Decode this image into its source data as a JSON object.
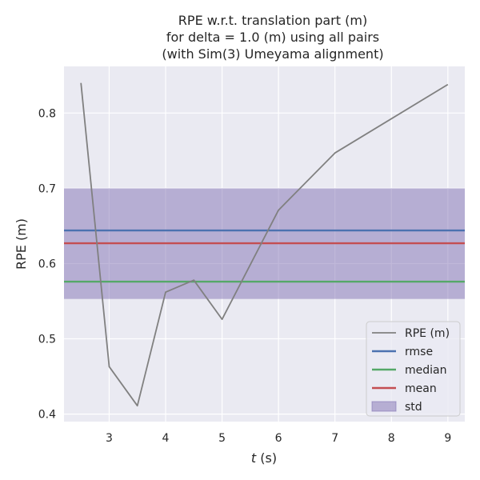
{
  "chart_data": {
    "type": "line",
    "title": [
      "RPE w.r.t. translation part (m)",
      "for delta = 1.0 (m) using all pairs",
      "(with Sim(3) Umeyama alignment)"
    ],
    "xlabel_italic": "t",
    "xlabel_rest": " (s)",
    "ylabel": "RPE (m)",
    "xlim": [
      2.2,
      9.3
    ],
    "ylim": [
      0.39,
      0.862
    ],
    "x_ticks": [
      3,
      4,
      5,
      6,
      7,
      8,
      9
    ],
    "y_ticks": [
      0.4,
      0.5,
      0.6,
      0.7,
      0.8
    ],
    "y_tick_labels": [
      "0.4",
      "0.5",
      "0.6",
      "0.7",
      "0.8"
    ],
    "grid": true,
    "legend_position": "lower-right",
    "series": [
      {
        "name": "RPE (m)",
        "color": "#808080",
        "x": [
          2.5,
          3.0,
          3.5,
          4.0,
          4.5,
          5.0,
          6.0,
          7.0,
          9.0
        ],
        "y": [
          0.84,
          0.463,
          0.411,
          0.562,
          0.578,
          0.526,
          0.671,
          0.747,
          0.838
        ]
      }
    ],
    "hlines": [
      {
        "name": "rmse",
        "value": 0.644,
        "color": "#4c72b0"
      },
      {
        "name": "median",
        "value": 0.576,
        "color": "#55a868"
      },
      {
        "name": "mean",
        "value": 0.627,
        "color": "#c44e52"
      }
    ],
    "std_band": {
      "name": "std",
      "lower": 0.553,
      "upper": 0.7,
      "color": "#8172b3"
    }
  }
}
